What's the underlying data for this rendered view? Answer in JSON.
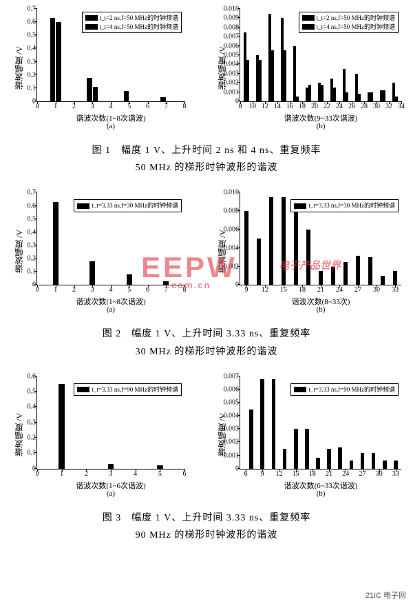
{
  "colors": {
    "bar": "#000000",
    "axis": "#000000",
    "bg": "#ffffff",
    "watermark": "#e63946"
  },
  "fig1": {
    "a": {
      "type": "bar",
      "ylabel": "谐波幅度 /V",
      "xlabel": "谐波次数(1~8次谐波)",
      "sub": "(a)",
      "xlim": [
        0,
        8
      ],
      "xticks": [
        0,
        1,
        2,
        3,
        4,
        5,
        6,
        7,
        8
      ],
      "ylim": [
        0,
        0.7
      ],
      "yticks": [
        0,
        0.1,
        0.2,
        0.3,
        0.4,
        0.5,
        0.6,
        0.7
      ],
      "legend": [
        "t_t=2 ns,f=50 MHz的时钟频谱",
        "t_t=4 ns,f=50 MHz的时钟频谱"
      ],
      "series1": {
        "1": 0.63,
        "3": 0.18,
        "5": 0.08,
        "7": 0.03
      },
      "series2": {
        "1": 0.6,
        "3": 0.11,
        "5": 0.0,
        "7": 0.0
      },
      "bar_w": 0.28
    },
    "b": {
      "type": "bar",
      "ylabel": "谐波幅度 /V",
      "xlabel": "谐波次数(9~33次谐波)",
      "sub": "(b)",
      "xlim": [
        8,
        34
      ],
      "xticks": [
        8,
        10,
        12,
        14,
        16,
        18,
        20,
        22,
        24,
        26,
        28,
        30,
        32,
        34
      ],
      "ylim": [
        0,
        0.01
      ],
      "yticks": [
        0,
        0.001,
        0.002,
        0.003,
        0.004,
        0.005,
        0.006,
        0.007,
        0.008,
        0.009,
        0.01
      ],
      "legend": [
        "t_t=2 ns,f=50 MHz的时钟频谱",
        "t_t=4 ns,f=50 MHz的时钟频谱"
      ],
      "series1": {
        "9": 0.0075,
        "11": 0.005,
        "13": 0.0095,
        "15": 0.009,
        "17": 0.006,
        "19": 0.0015,
        "21": 0.002,
        "23": 0.0025,
        "25": 0.0035,
        "27": 0.003,
        "29": 0.001,
        "31": 0.0012,
        "33": 0.002
      },
      "series2": {
        "9": 0.0045,
        "11": 0.0045,
        "13": 0.0055,
        "15": 0.0055,
        "17": 0.0005,
        "19": 0.0018,
        "21": 0.0018,
        "23": 0.0015,
        "25": 0.001,
        "27": 0.0008,
        "29": 0.001,
        "31": 0.0012,
        "33": 0.0005
      },
      "bar_w": 0.4
    },
    "caption_l1": "图 1　幅度 1 V、上升时间 2 ns 和 4 ns、重复频率",
    "caption_l2": "50 MHz 的梯形时钟波形的谐波"
  },
  "fig2": {
    "a": {
      "type": "bar",
      "ylabel": "谐波幅度 /V",
      "xlabel": "谐波次数(1~8次谐波)",
      "sub": "(a)",
      "xlim": [
        0,
        8
      ],
      "xticks": [
        0,
        1,
        2,
        3,
        4,
        5,
        6,
        7,
        8
      ],
      "ylim": [
        0,
        0.7
      ],
      "yticks": [
        0,
        0.1,
        0.2,
        0.3,
        0.4,
        0.5,
        0.6,
        0.7
      ],
      "legend": [
        "t_t=3.33 ns,f=30 MHz的时钟频谱"
      ],
      "series1": {
        "1": 0.63,
        "3": 0.18,
        "5": 0.08,
        "7": 0.03
      },
      "bar_w": 0.3
    },
    "b": {
      "type": "bar",
      "ylabel": "谐波幅度 /V",
      "xlabel": "谐波次数(8~33次)",
      "sub": "(b)",
      "xlim": [
        8,
        34
      ],
      "xticks": [
        9,
        12,
        15,
        18,
        21,
        24,
        27,
        30,
        33
      ],
      "ylim": [
        0,
        0.01
      ],
      "yticks": [
        0,
        0.002,
        0.004,
        0.006,
        0.008,
        0.01
      ],
      "legend": [
        "t_t=3.33 ns,f=30 MHz的时钟频谱"
      ],
      "series1": {
        "9": 0.008,
        "11": 0.005,
        "13": 0.0095,
        "15": 0.0095,
        "17": 0.009,
        "19": 0.006,
        "21": 0.0015,
        "23": 0.002,
        "25": 0.0025,
        "27": 0.0032,
        "29": 0.003,
        "31": 0.001,
        "33": 0.0015
      },
      "bar_w": 0.6
    },
    "caption_l1": "图 2　幅度 1 V、上升时间 3.33 ns、重复频率",
    "caption_l2": "30 MHz 的梯形时钟波形的谐波"
  },
  "fig3": {
    "a": {
      "type": "bar",
      "ylabel": "谐波幅度 /V",
      "xlabel": "谐波次数(1~6次谐波)",
      "sub": "(a)",
      "xlim": [
        0,
        6
      ],
      "xticks": [
        0,
        1,
        2,
        3,
        4,
        5,
        6
      ],
      "ylim": [
        0,
        0.6
      ],
      "yticks": [
        0,
        0.1,
        0.2,
        0.3,
        0.4,
        0.5,
        0.6
      ],
      "legend": [
        "t_t=3.33 ns,f=90 MHz的时钟频谱"
      ],
      "series1": {
        "1": 0.55,
        "3": 0.03,
        "5": 0.02
      },
      "bar_w": 0.25
    },
    "b": {
      "type": "bar",
      "ylabel": "谐波幅度 /V",
      "xlabel": "谐波次数(6~33次谐波)",
      "sub": "(b)",
      "xlim": [
        5,
        34
      ],
      "xticks": [
        6,
        9,
        12,
        15,
        18,
        21,
        24,
        27,
        30,
        33
      ],
      "ylim": [
        0,
        0.007
      ],
      "yticks": [
        0,
        0.001,
        0.002,
        0.003,
        0.004,
        0.005,
        0.006,
        0.007
      ],
      "legend": [
        "t_t=3.33 ns,f=90 MHz的时钟频谱"
      ],
      "series1": {
        "7": 0.0045,
        "9": 0.0068,
        "11": 0.0068,
        "13": 0.0015,
        "15": 0.003,
        "17": 0.003,
        "19": 0.0008,
        "21": 0.0015,
        "23": 0.0016,
        "25": 0.0006,
        "27": 0.0012,
        "29": 0.0012,
        "31": 0.0006,
        "33": 0.0006
      },
      "bar_w": 0.7
    },
    "caption_l1": "图 3　幅度 1 V、上升时间 3.33 ns、重复频率",
    "caption_l2": "90 MHz 的梯形时钟波形的谐波"
  },
  "watermark_main": "EEPW",
  "watermark_sub": ".com.cn",
  "watermark_side": "电子产品世界",
  "footer": "21IC 电子网"
}
